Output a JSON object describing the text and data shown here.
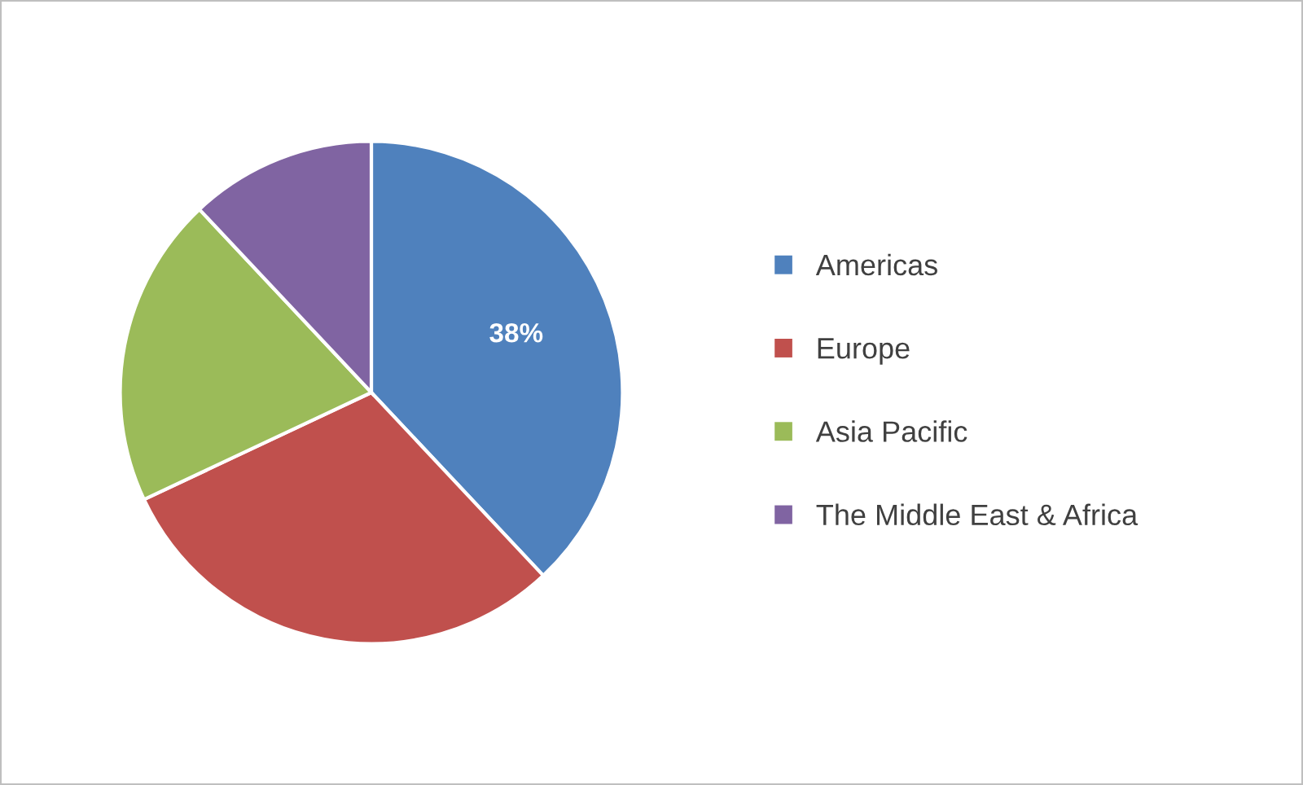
{
  "chart_data": {
    "type": "pie",
    "categories": [
      "Americas",
      "Europe",
      "Asia Pacific",
      "The Middle East & Africa"
    ],
    "values": [
      38,
      30,
      20,
      12
    ],
    "colors": [
      "#4f81bd",
      "#c0504d",
      "#9bbb59",
      "#8064a2"
    ],
    "value_labels": [
      "38%",
      null,
      null,
      null
    ],
    "legend": "right"
  }
}
